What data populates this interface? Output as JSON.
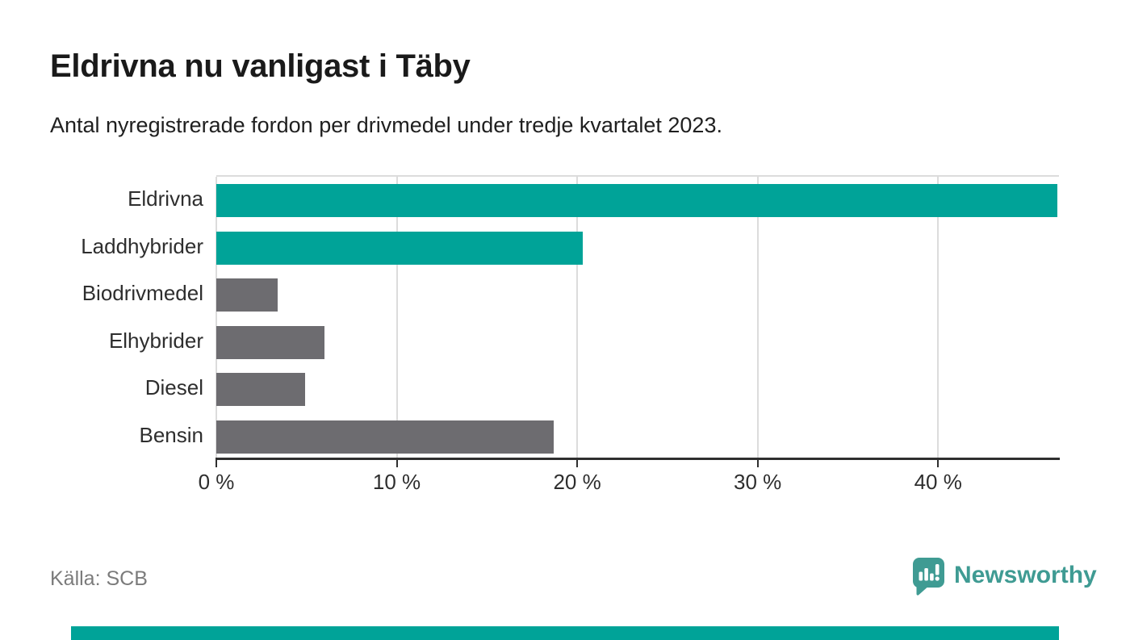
{
  "title": "Eldrivna nu vanligast i Täby",
  "subtitle": "Antal nyregistrerade fordon per drivmedel under tredje kvartalet 2023.",
  "source": "Källa: SCB",
  "brand": {
    "name": "Newsworthy",
    "logo_icon": "bar-chart-speech-bubble-icon",
    "color": "#3f9b93"
  },
  "colors": {
    "accent_teal": "#00a398",
    "bar_gray": "#6d6c70",
    "grid": "#dcdcdc",
    "axis": "#2f2f2f",
    "title_text": "#1a1a1a",
    "muted_text": "#7b7b7b"
  },
  "chart_data": {
    "type": "bar",
    "orientation": "horizontal",
    "title": "Eldrivna nu vanligast i Täby",
    "subtitle": "Antal nyregistrerade fordon per drivmedel under tredje kvartalet 2023.",
    "xlabel": "",
    "ylabel": "",
    "unit": "%",
    "categories": [
      "Eldrivna",
      "Laddhybrider",
      "Biodrivmedel",
      "Elhybrider",
      "Diesel",
      "Bensin"
    ],
    "values": [
      46.6,
      20.3,
      3.4,
      6.0,
      4.9,
      18.7
    ],
    "bar_colors": [
      "#00a398",
      "#00a398",
      "#6d6c70",
      "#6d6c70",
      "#6d6c70",
      "#6d6c70"
    ],
    "xlim": [
      0,
      46.7
    ],
    "x_ticks": [
      0,
      10,
      20,
      30,
      40
    ],
    "x_tick_labels": [
      "0 %",
      "10 %",
      "20 %",
      "30 %",
      "40 %"
    ],
    "grid": true,
    "legend": false
  }
}
